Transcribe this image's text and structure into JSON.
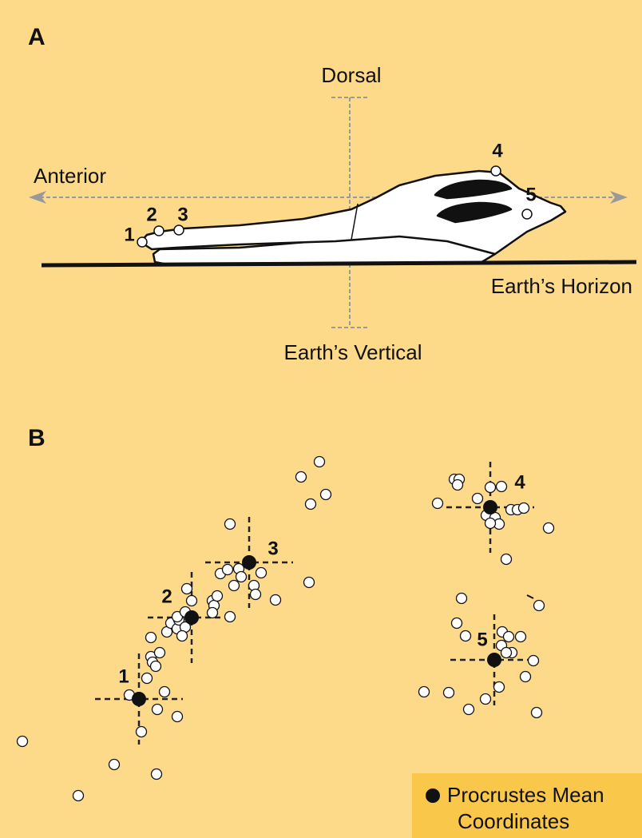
{
  "panel_a": {
    "label": "A",
    "dorsal": "Dorsal",
    "anterior": "Anterior",
    "horizon": "Earth’s Horizon",
    "vertical": "Earth’s Vertical",
    "landmarks": [
      "1",
      "2",
      "3",
      "4",
      "5"
    ]
  },
  "panel_b": {
    "label": "B",
    "landmarks": [
      "1",
      "2",
      "3",
      "4",
      "5"
    ]
  },
  "legend": {
    "lines": [
      "Procrustes Mean",
      "Coordinates"
    ]
  }
}
